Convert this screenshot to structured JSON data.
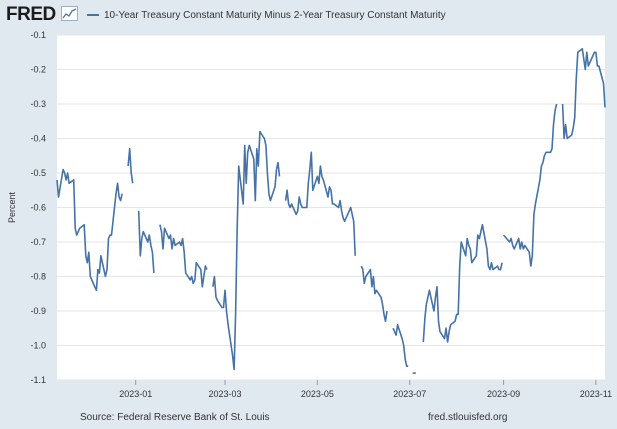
{
  "header": {
    "logo_text": "FRED",
    "logo_icon": "line-chart-icon",
    "legend_label": "10-Year Treasury Constant Maturity Minus 2-Year Treasury Constant Maturity"
  },
  "footer": {
    "source": "Source: Federal Reserve Bank of St. Louis",
    "url": "fred.stlouisfed.org"
  },
  "colors": {
    "background": "#e1e9f0",
    "plot_area": "#ffffff",
    "series": "#4572a7",
    "grid": "#e6e6e6"
  },
  "chart_data": {
    "type": "line",
    "title": "",
    "xlabel": "",
    "ylabel": "Percent",
    "ylim": [
      -1.1,
      -0.1
    ],
    "xlim": [
      "2022-11-10",
      "2023-11-07"
    ],
    "y_ticks": [
      "-0.1",
      "-0.2",
      "-0.3",
      "-0.4",
      "-0.5",
      "-0.6",
      "-0.7",
      "-0.8",
      "-0.9",
      "-1.0",
      "-1.1"
    ],
    "x_ticks": [
      {
        "date": "2023-01-01",
        "label": "2023-01"
      },
      {
        "date": "2023-03-01",
        "label": "2023-03"
      },
      {
        "date": "2023-05-01",
        "label": "2023-05"
      },
      {
        "date": "2023-07-01",
        "label": "2023-07"
      },
      {
        "date": "2023-09-01",
        "label": "2023-09"
      },
      {
        "date": "2023-11-01",
        "label": "2023-11"
      }
    ],
    "grid": "horizontal",
    "legend": "top-left",
    "series": [
      {
        "name": "10-Year Treasury Constant Maturity Minus 2-Year Treasury Constant Maturity",
        "segments": [
          {
            "x": [
              "2022-11-10",
              "2022-11-11",
              "2022-11-14",
              "2022-11-15",
              "2022-11-16",
              "2022-11-17",
              "2022-11-18",
              "2022-11-21",
              "2022-11-22",
              "2022-11-23",
              "2022-11-25",
              "2022-11-28",
              "2022-11-29",
              "2022-11-30",
              "2022-12-01",
              "2022-12-02",
              "2022-12-05",
              "2022-12-06",
              "2022-12-07",
              "2022-12-08",
              "2022-12-09",
              "2022-12-12",
              "2022-12-13",
              "2022-12-14",
              "2022-12-15",
              "2022-12-16",
              "2022-12-19",
              "2022-12-20",
              "2022-12-21",
              "2022-12-22",
              "2022-12-23"
            ],
            "y": [
              -0.52,
              -0.57,
              -0.49,
              -0.5,
              -0.52,
              -0.5,
              -0.53,
              -0.52,
              -0.66,
              -0.68,
              -0.66,
              -0.65,
              -0.74,
              -0.76,
              -0.73,
              -0.8,
              -0.83,
              -0.84,
              -0.78,
              -0.79,
              -0.74,
              -0.8,
              -0.78,
              -0.69,
              -0.68,
              -0.68,
              -0.56,
              -0.53,
              -0.57,
              -0.58,
              -0.56
            ]
          },
          {
            "x": [
              "2022-12-27",
              "2022-12-28",
              "2022-12-29",
              "2022-12-30"
            ],
            "y": [
              -0.48,
              -0.43,
              -0.5,
              -0.53
            ]
          },
          {
            "x": [
              "2023-01-03",
              "2023-01-04",
              "2023-01-05",
              "2023-01-06",
              "2023-01-09",
              "2023-01-10",
              "2023-01-11",
              "2023-01-12",
              "2023-01-13"
            ],
            "y": [
              -0.61,
              -0.74,
              -0.69,
              -0.67,
              -0.7,
              -0.68,
              -0.71,
              -0.73,
              -0.79
            ]
          },
          {
            "x": [
              "2023-01-17",
              "2023-01-18",
              "2023-01-19",
              "2023-01-20",
              "2023-01-23",
              "2023-01-24",
              "2023-01-25",
              "2023-01-26",
              "2023-01-27",
              "2023-01-30",
              "2023-01-31",
              "2023-02-01",
              "2023-02-02",
              "2023-02-03",
              "2023-02-06",
              "2023-02-07",
              "2023-02-08",
              "2023-02-09",
              "2023-02-10",
              "2023-02-13",
              "2023-02-14",
              "2023-02-15",
              "2023-02-16",
              "2023-02-17"
            ],
            "y": [
              -0.65,
              -0.67,
              -0.72,
              -0.66,
              -0.69,
              -0.68,
              -0.72,
              -0.69,
              -0.71,
              -0.7,
              -0.71,
              -0.69,
              -0.73,
              -0.79,
              -0.81,
              -0.8,
              -0.82,
              -0.81,
              -0.76,
              -0.78,
              -0.83,
              -0.8,
              -0.77,
              -0.78
            ]
          },
          {
            "x": [
              "2023-02-21",
              "2023-02-22",
              "2023-02-23",
              "2023-02-24",
              "2023-02-27",
              "2023-02-28",
              "2023-03-01",
              "2023-03-02",
              "2023-03-03",
              "2023-03-06",
              "2023-03-07",
              "2023-03-08",
              "2023-03-09",
              "2023-03-10",
              "2023-03-13",
              "2023-03-14",
              "2023-03-15",
              "2023-03-16",
              "2023-03-17",
              "2023-03-20",
              "2023-03-21",
              "2023-03-22",
              "2023-03-23",
              "2023-03-24",
              "2023-03-27",
              "2023-03-28",
              "2023-03-29",
              "2023-03-30",
              "2023-03-31",
              "2023-04-03",
              "2023-04-04",
              "2023-04-05",
              "2023-04-06"
            ],
            "y": [
              -0.83,
              -0.8,
              -0.86,
              -0.87,
              -0.89,
              -0.89,
              -0.84,
              -0.9,
              -0.94,
              -1.03,
              -1.07,
              -0.91,
              -0.67,
              -0.48,
              -0.59,
              -0.42,
              -0.53,
              -0.44,
              -0.42,
              -0.46,
              -0.58,
              -0.43,
              -0.48,
              -0.38,
              -0.4,
              -0.42,
              -0.5,
              -0.56,
              -0.58,
              -0.54,
              -0.49,
              -0.47,
              -0.51
            ]
          },
          {
            "x": [
              "2023-04-10",
              "2023-04-11",
              "2023-04-12",
              "2023-04-13",
              "2023-04-14",
              "2023-04-17",
              "2023-04-18",
              "2023-04-19",
              "2023-04-20",
              "2023-04-21",
              "2023-04-24",
              "2023-04-25",
              "2023-04-26",
              "2023-04-27",
              "2023-04-28",
              "2023-05-01",
              "2023-05-02",
              "2023-05-03",
              "2023-05-04",
              "2023-05-05",
              "2023-05-08",
              "2023-05-09",
              "2023-05-10",
              "2023-05-11",
              "2023-05-12",
              "2023-05-15",
              "2023-05-16",
              "2023-05-17",
              "2023-05-18",
              "2023-05-19",
              "2023-05-22",
              "2023-05-23",
              "2023-05-24",
              "2023-05-25",
              "2023-05-26"
            ],
            "y": [
              -0.58,
              -0.55,
              -0.59,
              -0.6,
              -0.59,
              -0.62,
              -0.61,
              -0.57,
              -0.59,
              -0.6,
              -0.6,
              -0.53,
              -0.49,
              -0.44,
              -0.55,
              -0.51,
              -0.53,
              -0.48,
              -0.51,
              -0.52,
              -0.57,
              -0.54,
              -0.55,
              -0.59,
              -0.59,
              -0.6,
              -0.58,
              -0.61,
              -0.63,
              -0.64,
              -0.61,
              -0.6,
              -0.62,
              -0.64,
              -0.74
            ]
          },
          {
            "x": [
              "2023-05-30",
              "2023-05-31",
              "2023-06-01",
              "2023-06-02",
              "2023-06-05",
              "2023-06-06",
              "2023-06-07",
              "2023-06-08",
              "2023-06-09",
              "2023-06-12",
              "2023-06-13",
              "2023-06-14",
              "2023-06-15",
              "2023-06-16"
            ],
            "y": [
              -0.77,
              -0.78,
              -0.82,
              -0.8,
              -0.78,
              -0.83,
              -0.8,
              -0.85,
              -0.84,
              -0.86,
              -0.88,
              -0.91,
              -0.93,
              -0.9
            ]
          },
          {
            "x": [
              "2023-06-20",
              "2023-06-21",
              "2023-06-22",
              "2023-06-23",
              "2023-06-26",
              "2023-06-27",
              "2023-06-28",
              "2023-06-29",
              "2023-06-30"
            ],
            "y": [
              -0.95,
              -0.96,
              -0.97,
              -0.94,
              -0.98,
              -1.0,
              -1.04,
              -1.06,
              -1.06
            ]
          },
          {
            "x": [
              "2023-07-03",
              "2023-07-05"
            ],
            "y": [
              -1.08,
              -1.08
            ]
          },
          {
            "x": [
              "2023-07-10",
              "2023-07-11",
              "2023-07-12",
              "2023-07-13",
              "2023-07-14",
              "2023-07-17",
              "2023-07-18",
              "2023-07-19",
              "2023-07-20",
              "2023-07-21",
              "2023-07-24",
              "2023-07-25",
              "2023-07-26",
              "2023-07-27",
              "2023-07-28",
              "2023-07-31",
              "2023-08-01",
              "2023-08-02",
              "2023-08-03",
              "2023-08-04",
              "2023-08-07",
              "2023-08-08",
              "2023-08-09",
              "2023-08-10",
              "2023-08-11",
              "2023-08-14",
              "2023-08-15",
              "2023-08-16",
              "2023-08-17",
              "2023-08-18",
              "2023-08-21",
              "2023-08-22",
              "2023-08-23",
              "2023-08-24",
              "2023-08-25",
              "2023-08-28",
              "2023-08-29",
              "2023-08-30",
              "2023-08-31"
            ],
            "y": [
              -0.99,
              -0.92,
              -0.88,
              -0.86,
              -0.84,
              -0.9,
              -0.86,
              -0.83,
              -0.93,
              -0.96,
              -0.98,
              -0.95,
              -0.99,
              -0.96,
              -0.94,
              -0.93,
              -0.91,
              -0.91,
              -0.77,
              -0.7,
              -0.74,
              -0.69,
              -0.71,
              -0.72,
              -0.76,
              -0.74,
              -0.68,
              -0.69,
              -0.67,
              -0.65,
              -0.72,
              -0.77,
              -0.78,
              -0.76,
              -0.78,
              -0.77,
              -0.78,
              -0.78,
              -0.76
            ]
          },
          {
            "x": [
              "2023-09-01",
              "2023-09-05",
              "2023-09-06",
              "2023-09-07",
              "2023-09-08",
              "2023-09-11",
              "2023-09-12",
              "2023-09-13",
              "2023-09-14",
              "2023-09-15",
              "2023-09-18",
              "2023-09-19",
              "2023-09-20",
              "2023-09-21",
              "2023-09-22",
              "2023-09-25",
              "2023-09-26",
              "2023-09-27",
              "2023-09-28",
              "2023-09-29",
              "2023-10-02",
              "2023-10-03",
              "2023-10-04",
              "2023-10-05",
              "2023-10-06"
            ],
            "y": [
              -0.68,
              -0.7,
              -0.69,
              -0.71,
              -0.72,
              -0.69,
              -0.72,
              -0.7,
              -0.72,
              -0.71,
              -0.73,
              -0.77,
              -0.74,
              -0.62,
              -0.59,
              -0.52,
              -0.48,
              -0.47,
              -0.45,
              -0.44,
              -0.44,
              -0.43,
              -0.36,
              -0.32,
              -0.3
            ]
          },
          {
            "x": [
              "2023-10-10",
              "2023-10-11",
              "2023-10-12",
              "2023-10-13",
              "2023-10-16",
              "2023-10-17",
              "2023-10-18",
              "2023-10-19",
              "2023-10-20",
              "2023-10-23",
              "2023-10-24",
              "2023-10-25",
              "2023-10-26",
              "2023-10-27",
              "2023-10-30",
              "2023-10-31",
              "2023-11-01",
              "2023-11-02",
              "2023-11-03",
              "2023-11-06",
              "2023-11-07"
            ],
            "y": [
              -0.3,
              -0.4,
              -0.36,
              -0.4,
              -0.39,
              -0.37,
              -0.34,
              -0.23,
              -0.15,
              -0.14,
              -0.17,
              -0.2,
              -0.15,
              -0.19,
              -0.16,
              -0.15,
              -0.15,
              -0.19,
              -0.19,
              -0.24,
              -0.31
            ]
          }
        ]
      }
    ]
  }
}
